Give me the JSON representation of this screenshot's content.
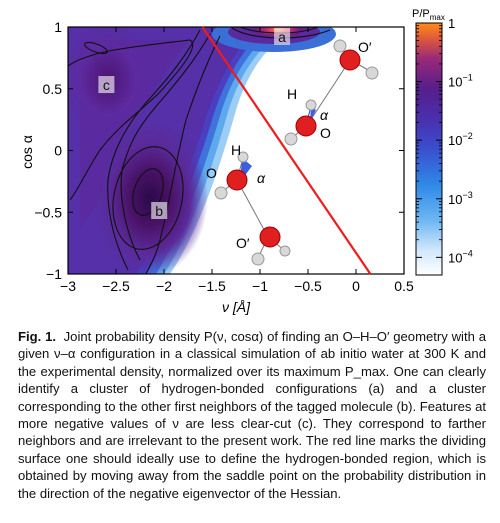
{
  "chart_data": {
    "type": "heatmap",
    "xlabel": "ν [Å]",
    "ylabel": "cos α",
    "xlim": [
      -3,
      0.5
    ],
    "ylim": [
      -1,
      1
    ],
    "x_ticks": [
      "−3",
      "−2.5",
      "−2",
      "−1.5",
      "−1",
      "−0.5",
      "0",
      "0.5"
    ],
    "y_ticks": [
      "1",
      "0.5",
      "0",
      "−0.5",
      "−1"
    ],
    "colorbar": {
      "title": "P/P",
      "title_sub": "max",
      "scale": "log",
      "range": [
        5e-05,
        1
      ],
      "tick_labels": [
        "1",
        "10",
        "10",
        "10",
        "10"
      ],
      "tick_exponents": [
        "",
        "−1",
        "−2",
        "−3",
        "−4"
      ]
    },
    "regions": [
      {
        "label": "a",
        "nu": -0.77,
        "cos": 0.92
      },
      {
        "label": "c",
        "nu": -2.6,
        "cos": 0.53
      },
      {
        "label": "b",
        "nu": -2.05,
        "cos": -0.49
      }
    ],
    "dividing_line": {
      "from": [
        -1.6,
        1.0
      ],
      "to": [
        0.15,
        -1.0
      ],
      "color": "#ee1c1c"
    },
    "molecule_labels": [
      "O′",
      "H",
      "O",
      "α",
      "H",
      "O",
      "α",
      "O′"
    ]
  },
  "caption": {
    "label": "Fig. 1.",
    "text": "Joint probability density P(ν, cosα) of finding an O–H–O′ geometry with a given ν–α configuration in a classical simulation of ab initio water at 300 K and the experimental density, normalized over its maximum P_max. One can clearly identify a cluster of hydrogen-bonded configurations (a) and a cluster corresponding to the other first neighbors of the tagged molecule (b). Features at more negative values of ν are less clear-cut (c). They correspond to farther neighbors and are irrelevant to the present work. The red line marks the dividing surface one should ideally use to define the hydrogen-bonded region, which is obtained by moving away from the saddle point on the probability distribution in the direction of the negative eigenvector of the Hessian."
  }
}
